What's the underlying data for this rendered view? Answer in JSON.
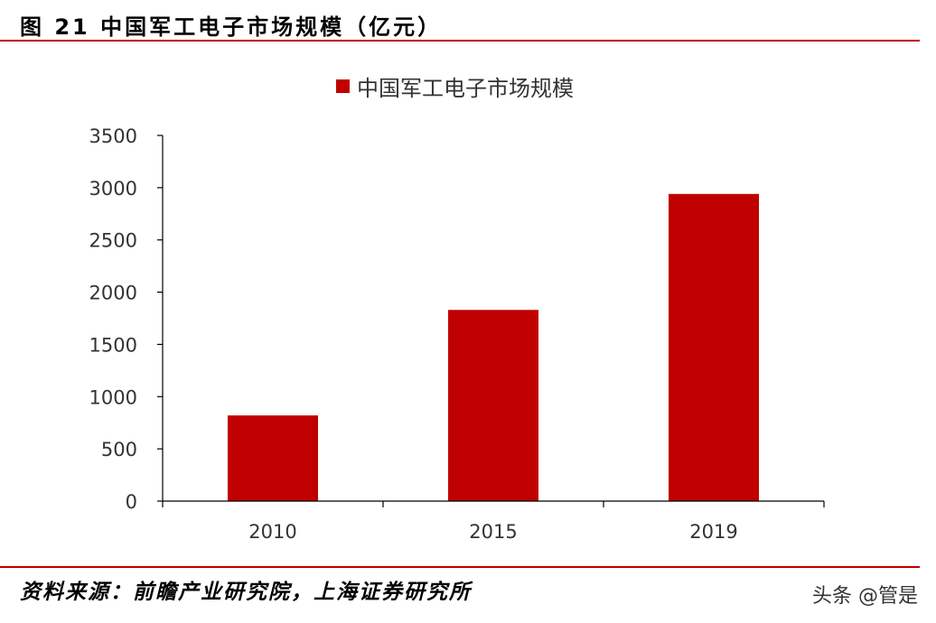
{
  "header": {
    "title": "图 21 中国军工电子市场规模（亿元）"
  },
  "footer": {
    "source": "资料来源：前瞻产业研究院，上海证券研究所",
    "watermark": "头条 @管是"
  },
  "colors": {
    "bar": "#c00000",
    "rule": "#c00000",
    "axis": "#000000",
    "tick_text": "#333333"
  },
  "chart_data": {
    "type": "bar",
    "title": "中国军工电子市场规模（亿元）",
    "categories": [
      "2010",
      "2015",
      "2019"
    ],
    "series": [
      {
        "name": "中国军工电子市场规模",
        "values": [
          820,
          1830,
          2940
        ]
      }
    ],
    "xlabel": "",
    "ylabel": "",
    "ylim": [
      0,
      3500
    ],
    "yticks": [
      0,
      500,
      1000,
      1500,
      2000,
      2500,
      3000,
      3500
    ],
    "grid": false,
    "legend_position": "top"
  }
}
